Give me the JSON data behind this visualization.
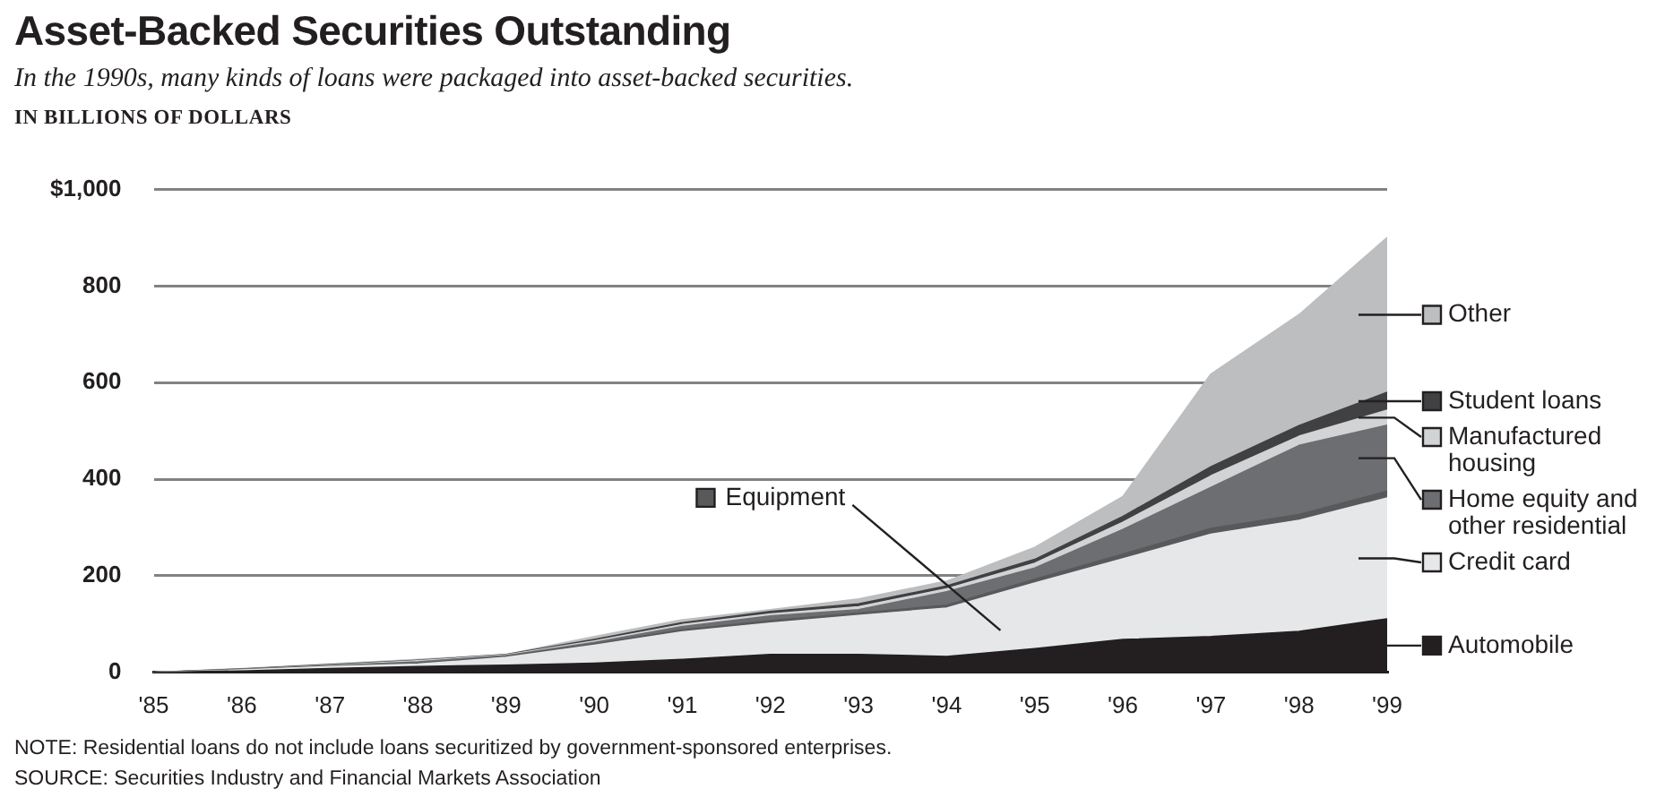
{
  "chart_data": {
    "type": "area",
    "title": "Asset-Backed Securities Outstanding",
    "subtitle": "In the 1990s, many kinds of loans were packaged into asset-backed securities.",
    "ylabel": "IN BILLIONS OF DOLLARS",
    "categories": [
      "'85",
      "'86",
      "'87",
      "'88",
      "'89",
      "'90",
      "'91",
      "'92",
      "'93",
      "'94",
      "'95",
      "'96",
      "'97",
      "'98",
      "'99"
    ],
    "stacked": true,
    "ylim": [
      0,
      1000
    ],
    "yticks": [
      0,
      200,
      400,
      600,
      800,
      {
        "value": 1000,
        "label": "$1,000"
      }
    ],
    "grid": "y",
    "legend": "right",
    "marker": "none",
    "series": [
      {
        "name": "Automobile",
        "color": "#231f20",
        "values": [
          0,
          3,
          8,
          12,
          15,
          19,
          27,
          37,
          37,
          33,
          49,
          68,
          74,
          85,
          111
        ]
      },
      {
        "name": "Credit card",
        "color": "#e6e7e9",
        "values": [
          0,
          2,
          4,
          5,
          16,
          37,
          57,
          65,
          81,
          100,
          136,
          167,
          212,
          230,
          250
        ]
      },
      {
        "name": "Equipment",
        "color": "#58595b",
        "values": [
          0,
          1,
          1,
          2,
          2,
          3,
          4,
          5,
          5,
          6,
          8,
          10,
          12,
          12,
          14
        ]
      },
      {
        "name": "Home equity and other residential",
        "color": "#6d6e71",
        "values": [
          0,
          0,
          1,
          3,
          2,
          3,
          7,
          10,
          7,
          28,
          23,
          51,
          85,
          143,
          137
        ]
      },
      {
        "name": "Manufactured housing",
        "color": "#d1d3d4",
        "values": [
          0,
          0,
          1,
          2,
          1,
          3,
          4,
          4,
          6,
          6,
          10,
          15,
          24,
          19,
          31
        ]
      },
      {
        "name": "Student loans",
        "color": "#414042",
        "values": [
          0,
          1,
          1,
          1,
          1,
          3,
          4,
          5,
          6,
          6,
          8,
          12,
          19,
          22,
          37
        ]
      },
      {
        "name": "Other",
        "color": "#bcbec0",
        "values": [
          0,
          1,
          1,
          2,
          0,
          6,
          6,
          4,
          10,
          10,
          25,
          41,
          192,
          230,
          321
        ]
      }
    ],
    "annotations": [
      "NOTE: Residential loans do not include loans securitized by government-sponsored enterprises.",
      "SOURCE: Securities Industry and Financial Markets Association"
    ]
  }
}
